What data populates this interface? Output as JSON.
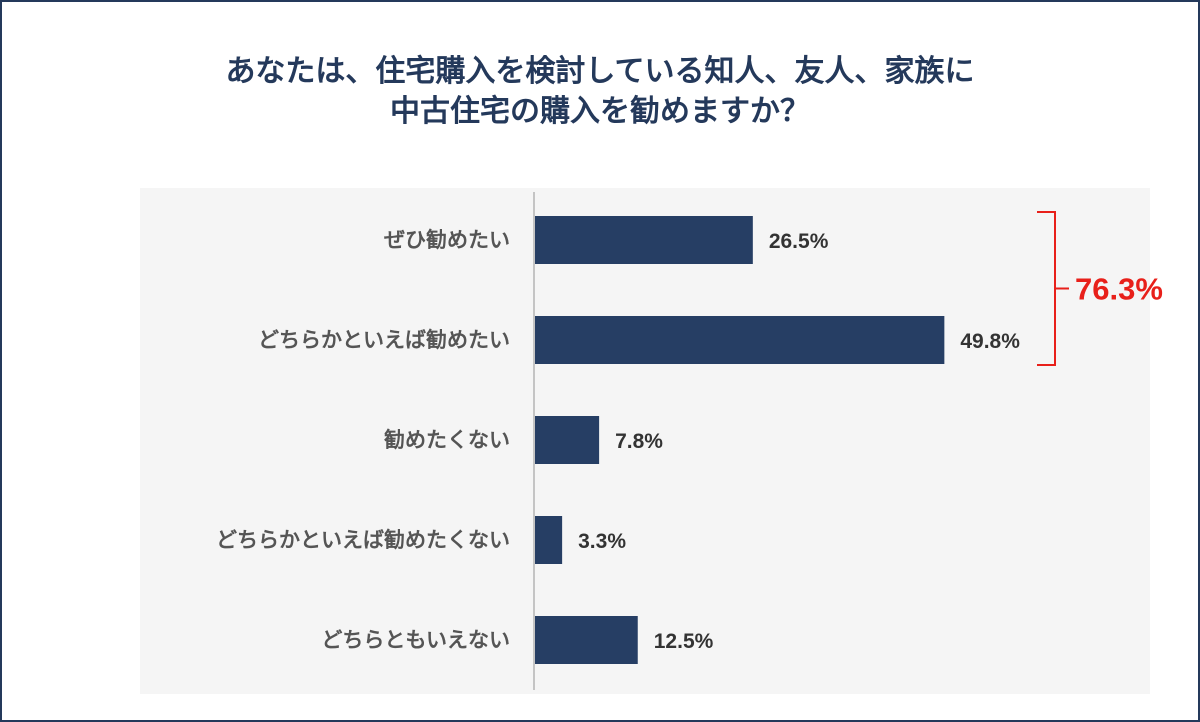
{
  "chart_data": {
    "type": "bar",
    "orientation": "horizontal",
    "title_lines": [
      "あなたは、住宅購入を検討している知人、友人、家族に",
      "中古住宅の購入を勧めますか？"
    ],
    "categories": [
      "ぜひ勧めたい",
      "どちらかといえば勧めたい",
      "勧めたくない",
      "どちらかといえば勧めたくない",
      "どちらともいえない"
    ],
    "values": [
      26.5,
      49.8,
      7.8,
      3.3,
      12.5
    ],
    "value_labels": [
      "26.5%",
      "49.8%",
      "7.8%",
      "3.3%",
      "12.5%"
    ],
    "unit": "%",
    "bar_color": "#263e64",
    "annotation": {
      "label": "76.3%",
      "covers_categories": [
        0,
        1
      ],
      "color": "#e8201a"
    },
    "legend": "none",
    "grid": false
  }
}
